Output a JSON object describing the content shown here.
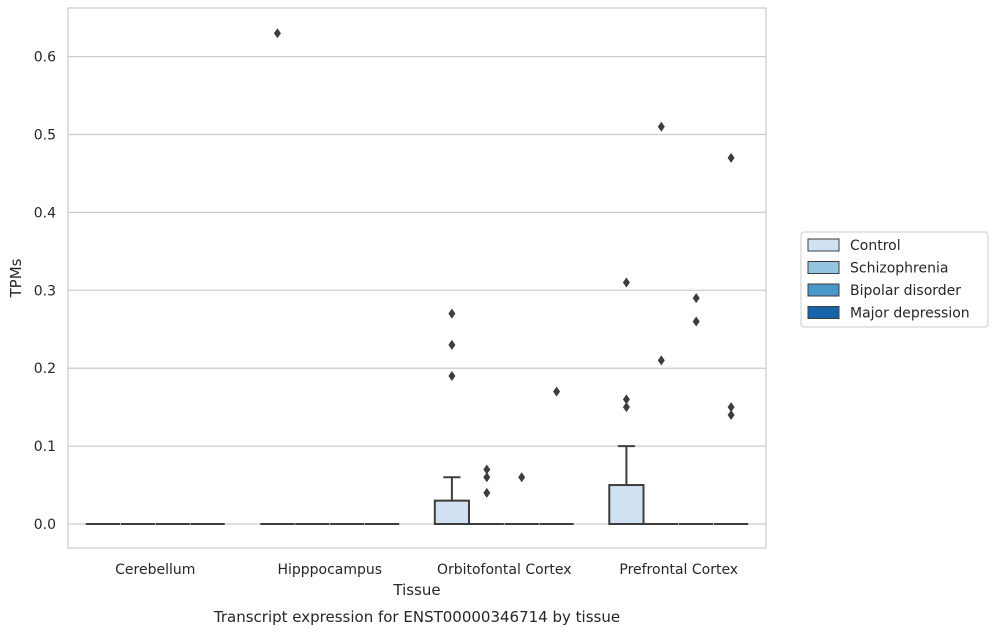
{
  "chart_data": {
    "type": "box",
    "title": "",
    "caption": "Transcript expression for ENST00000346714 by tissue",
    "xlabel": "Tissue",
    "ylabel": "TPMs",
    "ylim": [
      -0.03,
      0.665
    ],
    "yticks": [
      0.0,
      0.1,
      0.2,
      0.3,
      0.4,
      0.5,
      0.6
    ],
    "ytick_labels": [
      "0.0",
      "0.1",
      "0.2",
      "0.3",
      "0.4",
      "0.5",
      "0.6"
    ],
    "grid": "horizontal",
    "legend_position": "right",
    "categories": [
      "Cerebellum",
      "Hipppocampus",
      "Orbitofontal Cortex",
      "Prefrontal Cortex"
    ],
    "series": [
      {
        "name": "Control",
        "color": "#d0e1f2",
        "boxes": [
          {
            "q1": 0,
            "median": 0,
            "q3": 0,
            "whisker_low": 0,
            "whisker_high": 0,
            "outliers": []
          },
          {
            "q1": 0,
            "median": 0,
            "q3": 0,
            "whisker_low": 0,
            "whisker_high": 0,
            "outliers": [
              0.63
            ]
          },
          {
            "q1": 0,
            "median": 0,
            "q3": 0.03,
            "whisker_low": 0,
            "whisker_high": 0.06,
            "outliers": [
              0.19,
              0.23,
              0.27
            ]
          },
          {
            "q1": 0,
            "median": 0,
            "q3": 0.05,
            "whisker_low": 0,
            "whisker_high": 0.1,
            "outliers": [
              0.15,
              0.16,
              0.31
            ]
          }
        ]
      },
      {
        "name": "Schizophrenia",
        "color": "#94c4df",
        "boxes": [
          {
            "q1": 0,
            "median": 0,
            "q3": 0,
            "whisker_low": 0,
            "whisker_high": 0,
            "outliers": []
          },
          {
            "q1": 0,
            "median": 0,
            "q3": 0,
            "whisker_low": 0,
            "whisker_high": 0,
            "outliers": []
          },
          {
            "q1": 0,
            "median": 0,
            "q3": 0,
            "whisker_low": 0,
            "whisker_high": 0,
            "outliers": [
              0.04,
              0.06,
              0.07
            ]
          },
          {
            "q1": 0,
            "median": 0,
            "q3": 0,
            "whisker_low": 0,
            "whisker_high": 0,
            "outliers": [
              0.21,
              0.51
            ]
          }
        ]
      },
      {
        "name": "Bipolar disorder",
        "color": "#4a98c9",
        "boxes": [
          {
            "q1": 0,
            "median": 0,
            "q3": 0,
            "whisker_low": 0,
            "whisker_high": 0,
            "outliers": []
          },
          {
            "q1": 0,
            "median": 0,
            "q3": 0,
            "whisker_low": 0,
            "whisker_high": 0,
            "outliers": []
          },
          {
            "q1": 0,
            "median": 0,
            "q3": 0,
            "whisker_low": 0,
            "whisker_high": 0,
            "outliers": [
              0.06
            ]
          },
          {
            "q1": 0,
            "median": 0,
            "q3": 0,
            "whisker_low": 0,
            "whisker_high": 0,
            "outliers": [
              0.26,
              0.29
            ]
          }
        ]
      },
      {
        "name": "Major depression",
        "color": "#1764ab",
        "boxes": [
          {
            "q1": 0,
            "median": 0,
            "q3": 0,
            "whisker_low": 0,
            "whisker_high": 0,
            "outliers": []
          },
          {
            "q1": 0,
            "median": 0,
            "q3": 0,
            "whisker_low": 0,
            "whisker_high": 0,
            "outliers": []
          },
          {
            "q1": 0,
            "median": 0,
            "q3": 0,
            "whisker_low": 0,
            "whisker_high": 0,
            "outliers": [
              0.17
            ]
          },
          {
            "q1": 0,
            "median": 0,
            "q3": 0,
            "whisker_low": 0,
            "whisker_high": 0,
            "outliers": [
              0.14,
              0.15,
              0.47
            ]
          }
        ]
      }
    ]
  }
}
